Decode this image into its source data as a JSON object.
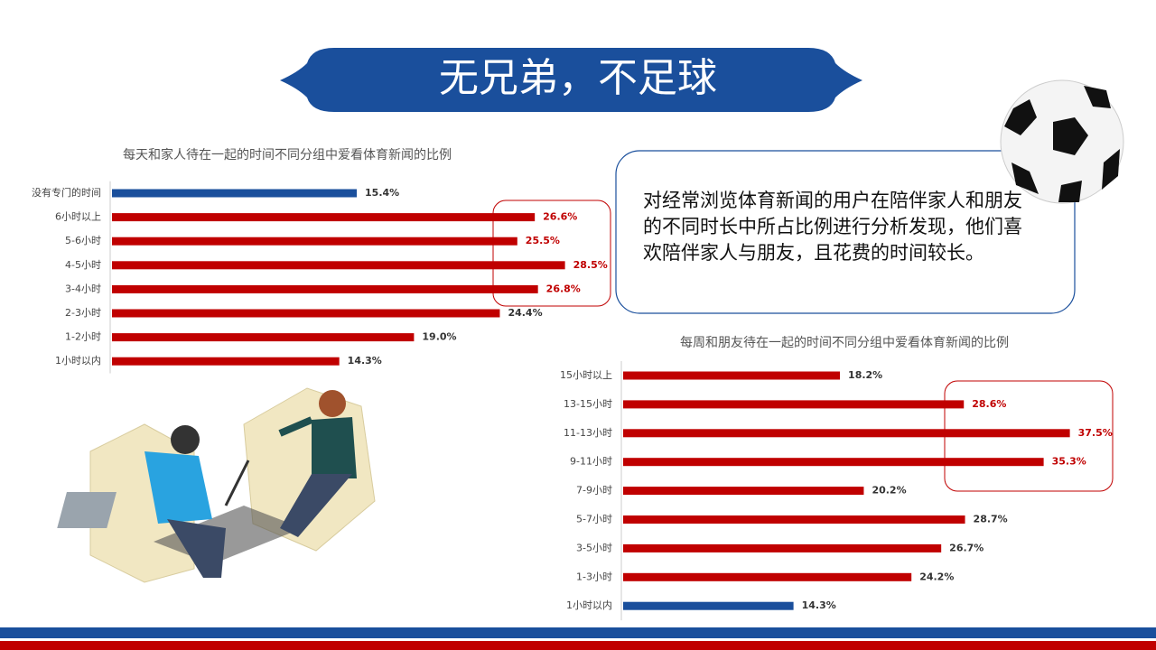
{
  "header": {
    "title": "无兄弟，不足球"
  },
  "description": "对经常浏览体育新闻的用户在陪伴家人和朋友的不同时长中所占比例进行分析发现，他们喜欢陪伴家人与朋友，且花费的时间较长。",
  "chart_data": [
    {
      "type": "bar",
      "orientation": "horizontal",
      "title": "每天和家人待在一起的时间不同分组中爱看体育新闻的比例",
      "categories": [
        "没有专门的时间",
        "6小时以上",
        "5-6小时",
        "4-5小时",
        "3-4小时",
        "2-3小时",
        "1-2小时",
        "1小时以内"
      ],
      "values": [
        15.4,
        26.6,
        25.5,
        28.5,
        26.8,
        24.4,
        19.0,
        14.3
      ],
      "value_labels": [
        "15.4%",
        "26.6%",
        "25.5%",
        "28.5%",
        "26.8%",
        "24.4%",
        "19.0%",
        "14.3%"
      ],
      "colors": [
        "#1a4f9c",
        "#c00000",
        "#c00000",
        "#c00000",
        "#c00000",
        "#c00000",
        "#c00000",
        "#c00000"
      ],
      "label_colors": [
        "#333333",
        "#c00000",
        "#c00000",
        "#c00000",
        "#c00000",
        "#333333",
        "#333333",
        "#333333"
      ],
      "xlim": [
        0,
        30
      ]
    },
    {
      "type": "bar",
      "orientation": "horizontal",
      "title": "每周和朋友待在一起的时间不同分组中爱看体育新闻的比例",
      "categories": [
        "15小时以上",
        "13-15小时",
        "11-13小时",
        "9-11小时",
        "7-9小时",
        "5-7小时",
        "3-5小时",
        "1-3小时",
        "1小时以内"
      ],
      "values": [
        18.2,
        28.6,
        37.5,
        35.3,
        20.2,
        28.7,
        26.7,
        24.2,
        14.3
      ],
      "value_labels": [
        "18.2%",
        "28.6%",
        "37.5%",
        "35.3%",
        "20.2%",
        "28.7%",
        "26.7%",
        "24.2%",
        "14.3%"
      ],
      "colors": [
        "#c00000",
        "#c00000",
        "#c00000",
        "#c00000",
        "#c00000",
        "#c00000",
        "#c00000",
        "#c00000",
        "#1a4f9c"
      ],
      "label_colors": [
        "#333333",
        "#c00000",
        "#c00000",
        "#c00000",
        "#333333",
        "#333333",
        "#333333",
        "#333333",
        "#333333"
      ],
      "xlim": [
        0,
        40
      ]
    }
  ]
}
